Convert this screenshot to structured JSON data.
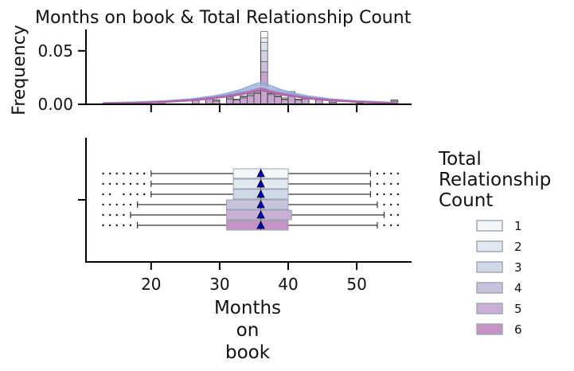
{
  "chart_data": [
    {
      "type": "histogram",
      "title": "Months on book & Total Relationship Count",
      "ylabel": "Frequency",
      "xlabel": "",
      "xlim": [
        10.5,
        58
      ],
      "ylim": [
        0,
        0.07
      ],
      "yticks": [
        0.0,
        0.05
      ],
      "ytick_labels": [
        "0.00",
        "0.05"
      ],
      "xticks": [
        20,
        30,
        40,
        50
      ],
      "bins": [
        {
          "x0": 13,
          "x1": 14,
          "d": [
            0.001,
            0.001,
            0.001,
            0.001,
            0.001,
            0.001
          ]
        },
        {
          "x0": 21,
          "x1": 22,
          "d": [
            0.002,
            0.002,
            0.002,
            0.002,
            0.002,
            0.002
          ]
        },
        {
          "x0": 26,
          "x1": 27,
          "d": [
            0.005,
            0.005,
            0.004,
            0.004,
            0.004,
            0.004
          ]
        },
        {
          "x0": 28,
          "x1": 29,
          "d": [
            0.007,
            0.006,
            0.006,
            0.006,
            0.005,
            0.005
          ]
        },
        {
          "x0": 29,
          "x1": 30,
          "d": [
            0.004,
            0.004,
            0.004,
            0.003,
            0.003,
            0.003
          ]
        },
        {
          "x0": 31,
          "x1": 32,
          "d": [
            0.007,
            0.006,
            0.006,
            0.006,
            0.005,
            0.005
          ]
        },
        {
          "x0": 32,
          "x1": 33,
          "d": [
            0.005,
            0.005,
            0.004,
            0.004,
            0.004,
            0.004
          ]
        },
        {
          "x0": 33,
          "x1": 34,
          "d": [
            0.008,
            0.007,
            0.007,
            0.006,
            0.006,
            0.006
          ]
        },
        {
          "x0": 34,
          "x1": 35,
          "d": [
            0.01,
            0.009,
            0.009,
            0.008,
            0.008,
            0.008
          ]
        },
        {
          "x0": 35,
          "x1": 36,
          "d": [
            0.013,
            0.012,
            0.012,
            0.011,
            0.011,
            0.01
          ]
        },
        {
          "x0": 36,
          "x1": 37,
          "d": [
            0.068,
            0.062,
            0.058,
            0.05,
            0.04,
            0.03
          ]
        },
        {
          "x0": 37,
          "x1": 38,
          "d": [
            0.012,
            0.011,
            0.011,
            0.01,
            0.01,
            0.009
          ]
        },
        {
          "x0": 38,
          "x1": 39,
          "d": [
            0.009,
            0.008,
            0.008,
            0.007,
            0.007,
            0.007
          ]
        },
        {
          "x0": 39,
          "x1": 40,
          "d": [
            0.006,
            0.006,
            0.005,
            0.005,
            0.005,
            0.004
          ]
        },
        {
          "x0": 40,
          "x1": 41,
          "d": [
            0.012,
            0.011,
            0.01,
            0.01,
            0.009,
            0.009
          ]
        },
        {
          "x0": 41,
          "x1": 42,
          "d": [
            0.005,
            0.005,
            0.004,
            0.004,
            0.004,
            0.004
          ]
        },
        {
          "x0": 42,
          "x1": 43,
          "d": [
            0.007,
            0.006,
            0.006,
            0.006,
            0.005,
            0.005
          ]
        },
        {
          "x0": 44,
          "x1": 45,
          "d": [
            0.006,
            0.005,
            0.005,
            0.005,
            0.004,
            0.004
          ]
        },
        {
          "x0": 46,
          "x1": 47,
          "d": [
            0.003,
            0.003,
            0.003,
            0.002,
            0.002,
            0.002
          ]
        },
        {
          "x0": 50,
          "x1": 51,
          "d": [
            0.002,
            0.002,
            0.002,
            0.002,
            0.001,
            0.001
          ]
        },
        {
          "x0": 55,
          "x1": 56,
          "d": [
            0.004,
            0.004,
            0.003,
            0.003,
            0.003,
            0.003
          ]
        }
      ],
      "kde": {
        "x": [
          13,
          18,
          22,
          26,
          29,
          31,
          33,
          34.5,
          35.5,
          36,
          36.5,
          37.5,
          39,
          41,
          43,
          46,
          50,
          54,
          56
        ],
        "series": [
          {
            "group": "1",
            "y": [
              0.001,
              0.0015,
              0.0025,
              0.004,
              0.006,
              0.008,
              0.011,
              0.014,
              0.016,
              0.0165,
              0.016,
              0.014,
              0.011,
              0.008,
              0.006,
              0.004,
              0.0025,
              0.0015,
              0.001
            ]
          },
          {
            "group": "2",
            "y": [
              0.001,
              0.0017,
              0.0028,
              0.0045,
              0.0068,
              0.009,
              0.012,
              0.015,
              0.0175,
              0.018,
              0.0175,
              0.015,
              0.012,
              0.009,
              0.0068,
              0.0045,
              0.0028,
              0.0017,
              0.001
            ]
          },
          {
            "group": "3",
            "y": [
              0.0012,
              0.002,
              0.003,
              0.005,
              0.0075,
              0.01,
              0.0135,
              0.017,
              0.0195,
              0.02,
              0.0195,
              0.017,
              0.0135,
              0.01,
              0.0075,
              0.005,
              0.003,
              0.002,
              0.0012
            ]
          },
          {
            "group": "4",
            "y": [
              0.0008,
              0.0013,
              0.0022,
              0.0037,
              0.0055,
              0.0075,
              0.0095,
              0.0115,
              0.013,
              0.0135,
              0.013,
              0.0115,
              0.0095,
              0.0075,
              0.0055,
              0.0037,
              0.0022,
              0.0013,
              0.0008
            ]
          },
          {
            "group": "5",
            "y": [
              0.0009,
              0.0015,
              0.0025,
              0.004,
              0.006,
              0.008,
              0.0105,
              0.0125,
              0.0145,
              0.015,
              0.0145,
              0.0125,
              0.0105,
              0.008,
              0.006,
              0.004,
              0.0025,
              0.0015,
              0.0009
            ]
          },
          {
            "group": "6",
            "y": [
              0.0008,
              0.0013,
              0.0022,
              0.0037,
              0.0055,
              0.0072,
              0.009,
              0.011,
              0.0125,
              0.013,
              0.0125,
              0.011,
              0.009,
              0.0072,
              0.0055,
              0.0037,
              0.0022,
              0.0013,
              0.0008
            ]
          }
        ]
      }
    },
    {
      "type": "box",
      "xlabel": "Months\non\nbook",
      "xlim": [
        10.5,
        58
      ],
      "xticks": [
        20,
        30,
        40,
        50
      ],
      "xtick_labels": [
        "20",
        "30",
        "40",
        "50"
      ],
      "legend_title": "Total\nRelationship\nCount",
      "legend_position": "right",
      "groups": [
        "1",
        "2",
        "3",
        "4",
        "5",
        "6"
      ],
      "boxes": [
        {
          "group": "1",
          "whisker_low": 20,
          "q1": 32,
          "median": 36,
          "q3": 40,
          "whisker_high": 52,
          "mean": 36,
          "outliers": [
            13,
            14,
            15,
            16,
            17,
            18,
            19,
            53,
            54,
            55,
            56
          ]
        },
        {
          "group": "2",
          "whisker_low": 20,
          "q1": 32,
          "median": 36,
          "q3": 40,
          "whisker_high": 52,
          "mean": 36,
          "outliers": [
            13,
            14,
            15,
            16,
            17,
            18,
            19,
            53,
            54,
            55,
            56
          ]
        },
        {
          "group": "3",
          "whisker_low": 20,
          "q1": 32,
          "median": 36,
          "q3": 40,
          "whisker_high": 52,
          "mean": 36,
          "outliers": [
            13,
            14,
            16,
            17,
            18,
            19,
            53,
            54,
            55,
            56
          ]
        },
        {
          "group": "4",
          "whisker_low": 18,
          "q1": 31,
          "median": 36,
          "q3": 40,
          "whisker_high": 53,
          "mean": 36,
          "outliers": [
            13,
            14,
            15,
            16,
            17,
            54,
            55,
            56
          ]
        },
        {
          "group": "5",
          "whisker_low": 17,
          "q1": 31,
          "median": 36,
          "q3": 40.5,
          "whisker_high": 54,
          "mean": 36,
          "outliers": [
            13,
            14,
            15,
            16,
            55,
            56
          ]
        },
        {
          "group": "6",
          "whisker_low": 18,
          "q1": 31,
          "median": 36,
          "q3": 40,
          "whisker_high": 53,
          "mean": 36,
          "outliers": [
            13,
            14,
            15,
            16,
            17,
            54,
            55,
            56
          ]
        }
      ]
    }
  ],
  "colors": {
    "groups": [
      "#f3f6f9",
      "#e2e8ef",
      "#cfd8e6",
      "#c7c3dc",
      "#c8afd3",
      "#c492c4"
    ],
    "kde": [
      "#b7c7e0",
      "#9fb6dc",
      "#8fa9d8",
      "#9b8fc4",
      "#a777b9",
      "#b05fa6"
    ],
    "mean_marker": "#0000cc",
    "axis": "#000000"
  }
}
